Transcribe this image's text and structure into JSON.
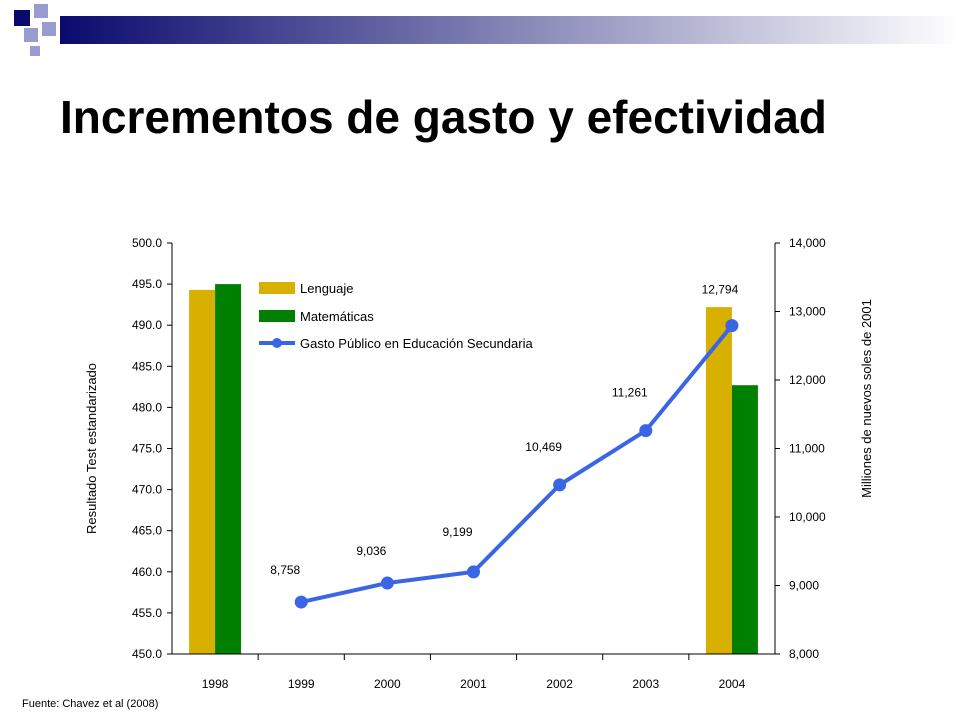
{
  "slide": {
    "title": "Incrementos de gasto y efectividad",
    "source": "Fuente: Chavez et al (2008)"
  },
  "colors": {
    "lenguaje": "#D8B100",
    "matematicas": "#008000",
    "gasto": "#3A66E6",
    "banner_dark": "#0A0A6E",
    "banner_light": "#9A9CCF"
  },
  "chart_data": {
    "type": "bar",
    "categories": [
      "1998",
      "1999",
      "2000",
      "2001",
      "2002",
      "2003",
      "2004"
    ],
    "series": [
      {
        "name": "Lenguaje",
        "type": "bar",
        "axis": "left",
        "values": [
          494.3,
          null,
          null,
          null,
          null,
          null,
          492.2
        ]
      },
      {
        "name": "Matemáticas",
        "type": "bar",
        "axis": "left",
        "values": [
          495.0,
          null,
          null,
          null,
          null,
          null,
          482.7
        ]
      },
      {
        "name": "Gasto Público en Educación Secundaria",
        "type": "line",
        "axis": "right",
        "values": [
          null,
          8758,
          9036,
          9199,
          10469,
          11261,
          12794
        ],
        "labels": [
          "",
          "8,758",
          "9,036",
          "9,199",
          "10,469",
          "11,261",
          "12,794"
        ]
      }
    ],
    "ylabel": "Resultado  Test estandarizado",
    "ylabel_right": "Milliones de nuevos  soles de 2001",
    "ylim": [
      450,
      500
    ],
    "ylim_right": [
      8000,
      14000
    ],
    "yticks": [
      "450.0",
      "455.0",
      "460.0",
      "465.0",
      "470.0",
      "475.0",
      "480.0",
      "485.0",
      "490.0",
      "495.0",
      "500.0"
    ],
    "yticks_right": [
      "8,000",
      "9,000",
      "10,000",
      "11,000",
      "12,000",
      "13,000",
      "14,000"
    ],
    "legend_position": "top-left",
    "grid": false
  }
}
